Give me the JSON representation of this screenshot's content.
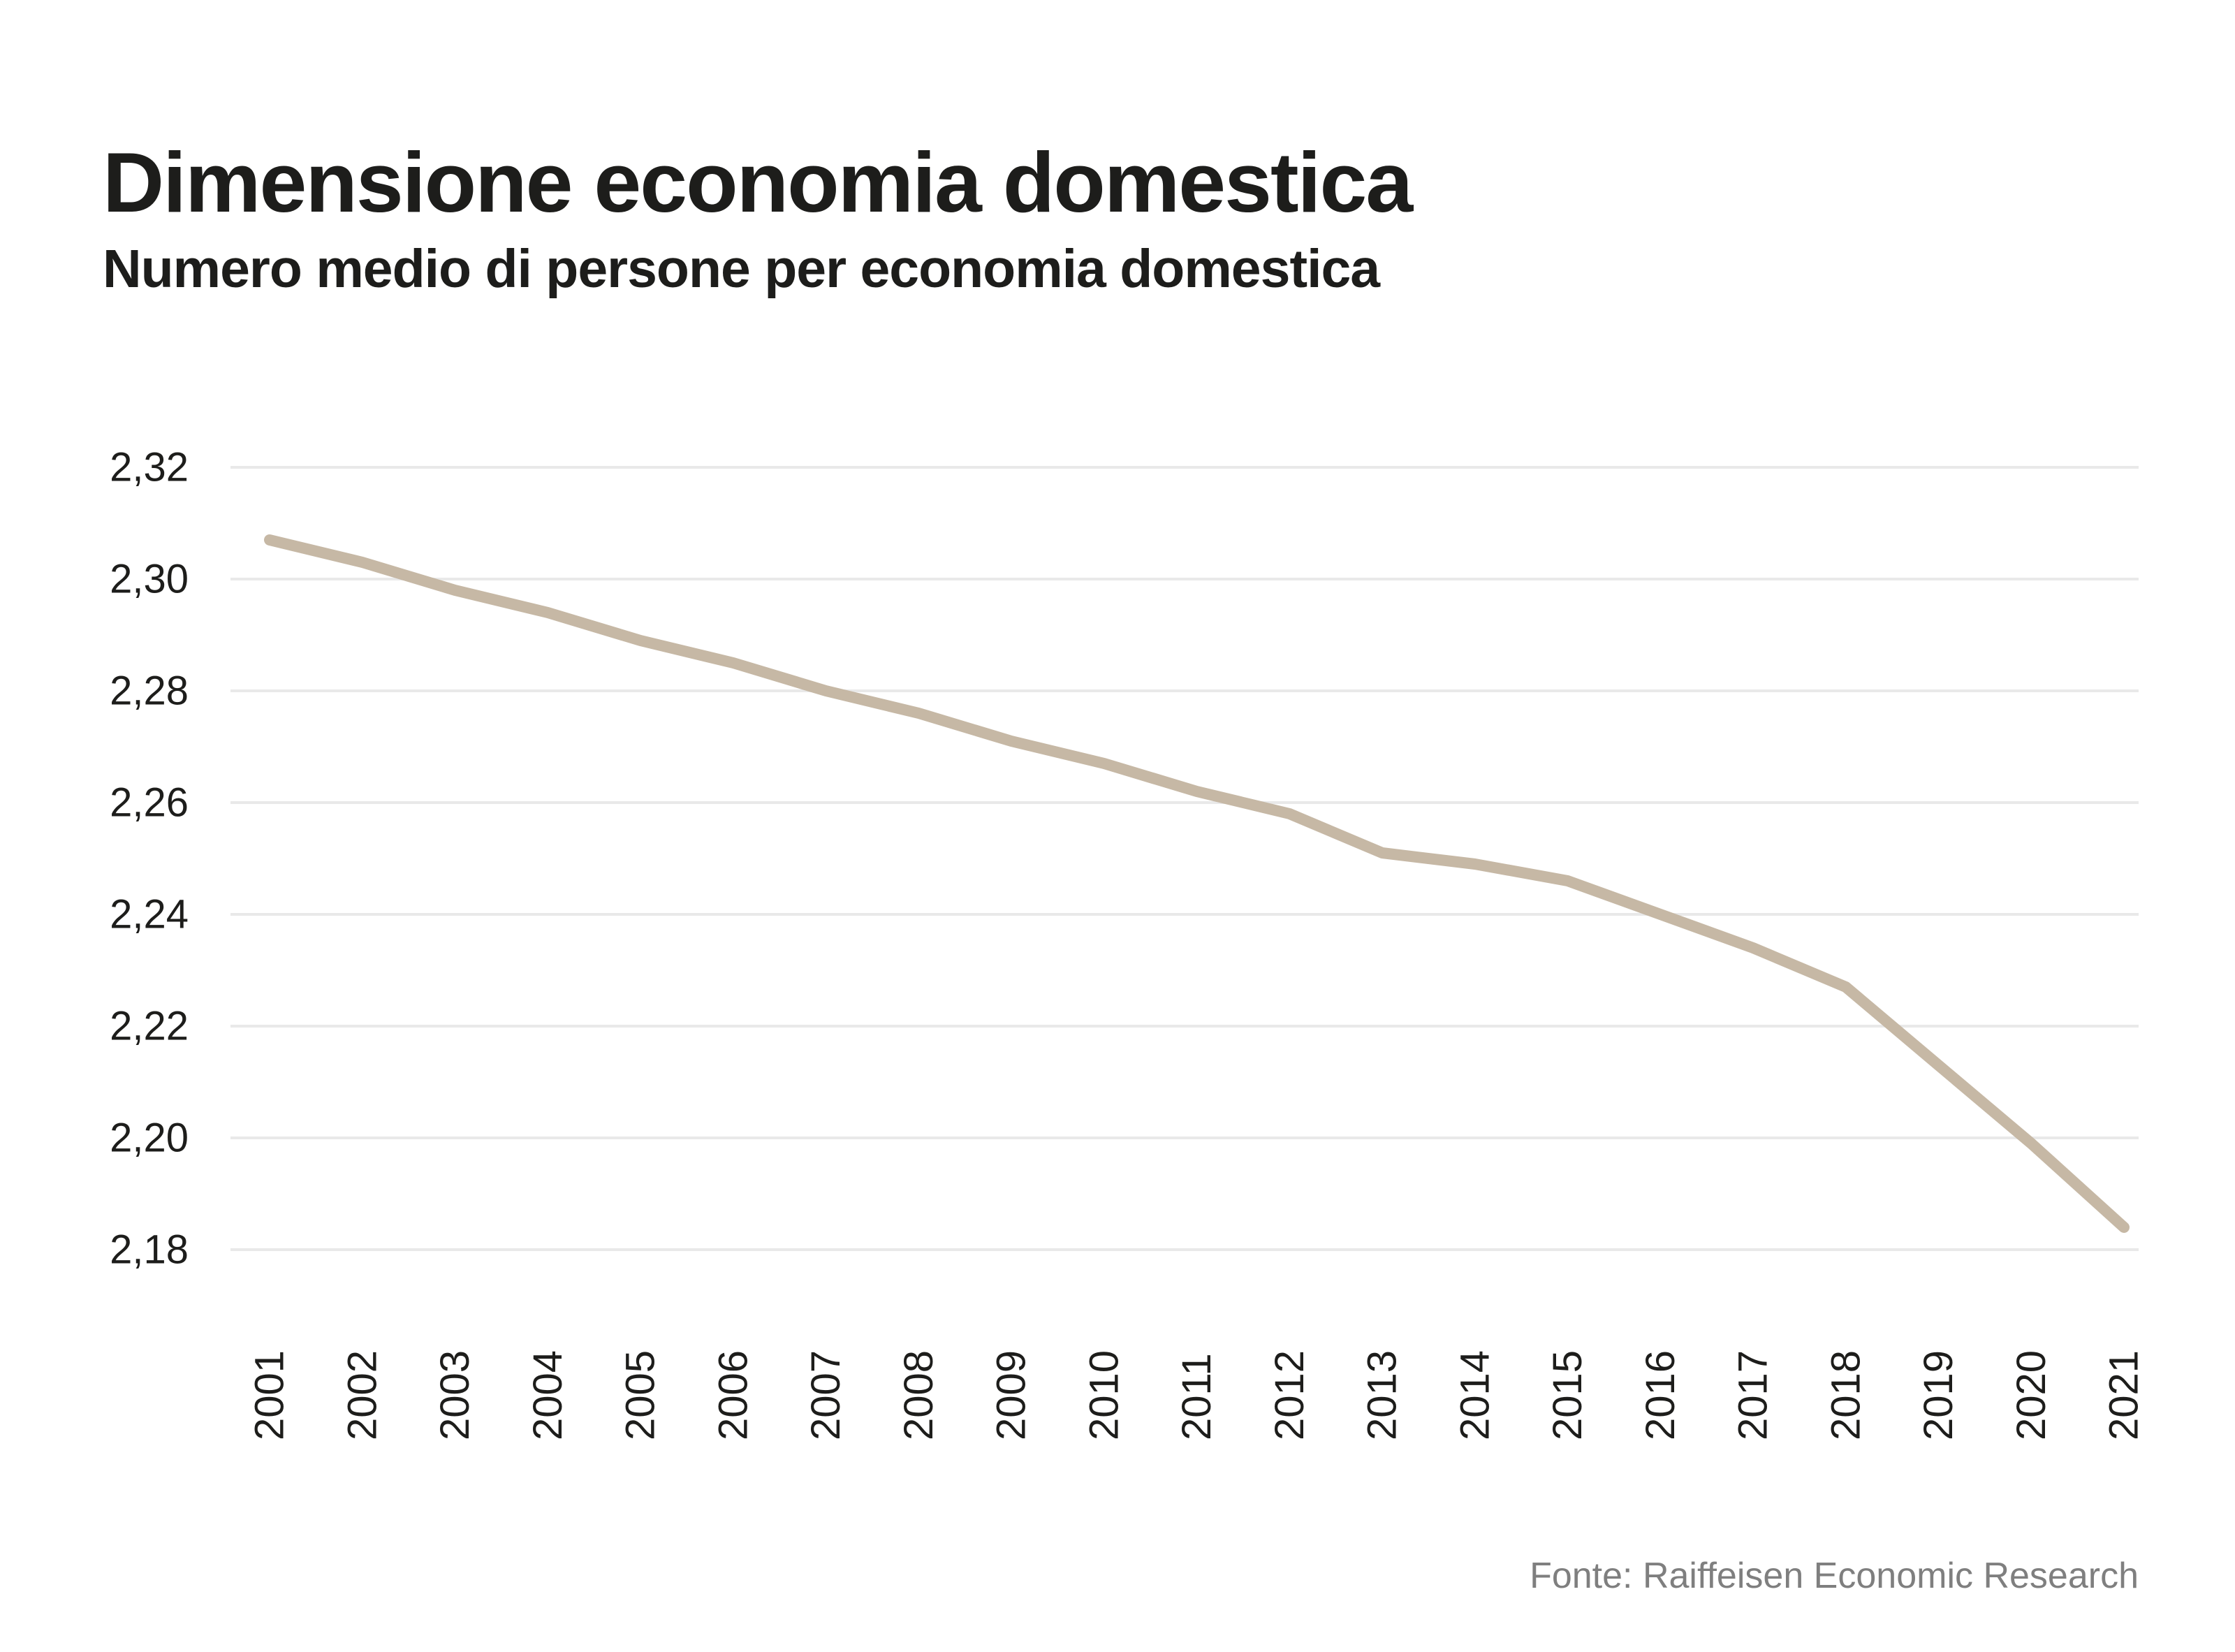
{
  "header": {
    "title": "Dimensione economia domestica",
    "subtitle": "Numero medio di persone per economia domestica"
  },
  "footer": {
    "source": "Fonte: Raiffeisen Economic Research"
  },
  "chart_data": {
    "type": "line",
    "title": "Dimensione economia domestica",
    "subtitle": "Numero medio di persone per economia domestica",
    "x": [
      2001,
      2002,
      2003,
      2004,
      2005,
      2006,
      2007,
      2008,
      2009,
      2010,
      2011,
      2012,
      2013,
      2014,
      2015,
      2016,
      2017,
      2018,
      2019,
      2020,
      2021
    ],
    "values": [
      2.307,
      2.303,
      2.298,
      2.294,
      2.289,
      2.285,
      2.28,
      2.276,
      2.271,
      2.267,
      2.262,
      2.258,
      2.251,
      2.249,
      2.246,
      2.24,
      2.234,
      2.227,
      2.213,
      2.199,
      2.184
    ],
    "xlabel": "",
    "ylabel": "",
    "ylim": [
      2.18,
      2.32
    ],
    "ytick_step": 0.02,
    "ytick_labels": [
      "2,32",
      "2,30",
      "2,28",
      "2,26",
      "2,24",
      "2,22",
      "2,20",
      "2,18"
    ],
    "xtick_labels": [
      "2001",
      "2002",
      "2003",
      "2004",
      "2005",
      "2006",
      "2007",
      "2008",
      "2009",
      "2010",
      "2011",
      "2012",
      "2013",
      "2014",
      "2015",
      "2016",
      "2017",
      "2018",
      "2019",
      "2020",
      "2021"
    ],
    "decimal_separator": ",",
    "grid": true,
    "legend_position": "none",
    "line_color": "#c6b8a5",
    "grid_color": "#e9e9e9",
    "tick_label_color": "#1d1d1b",
    "source_color": "#7f7f7f",
    "source": "Fonte: Raiffeisen Economic Research"
  }
}
